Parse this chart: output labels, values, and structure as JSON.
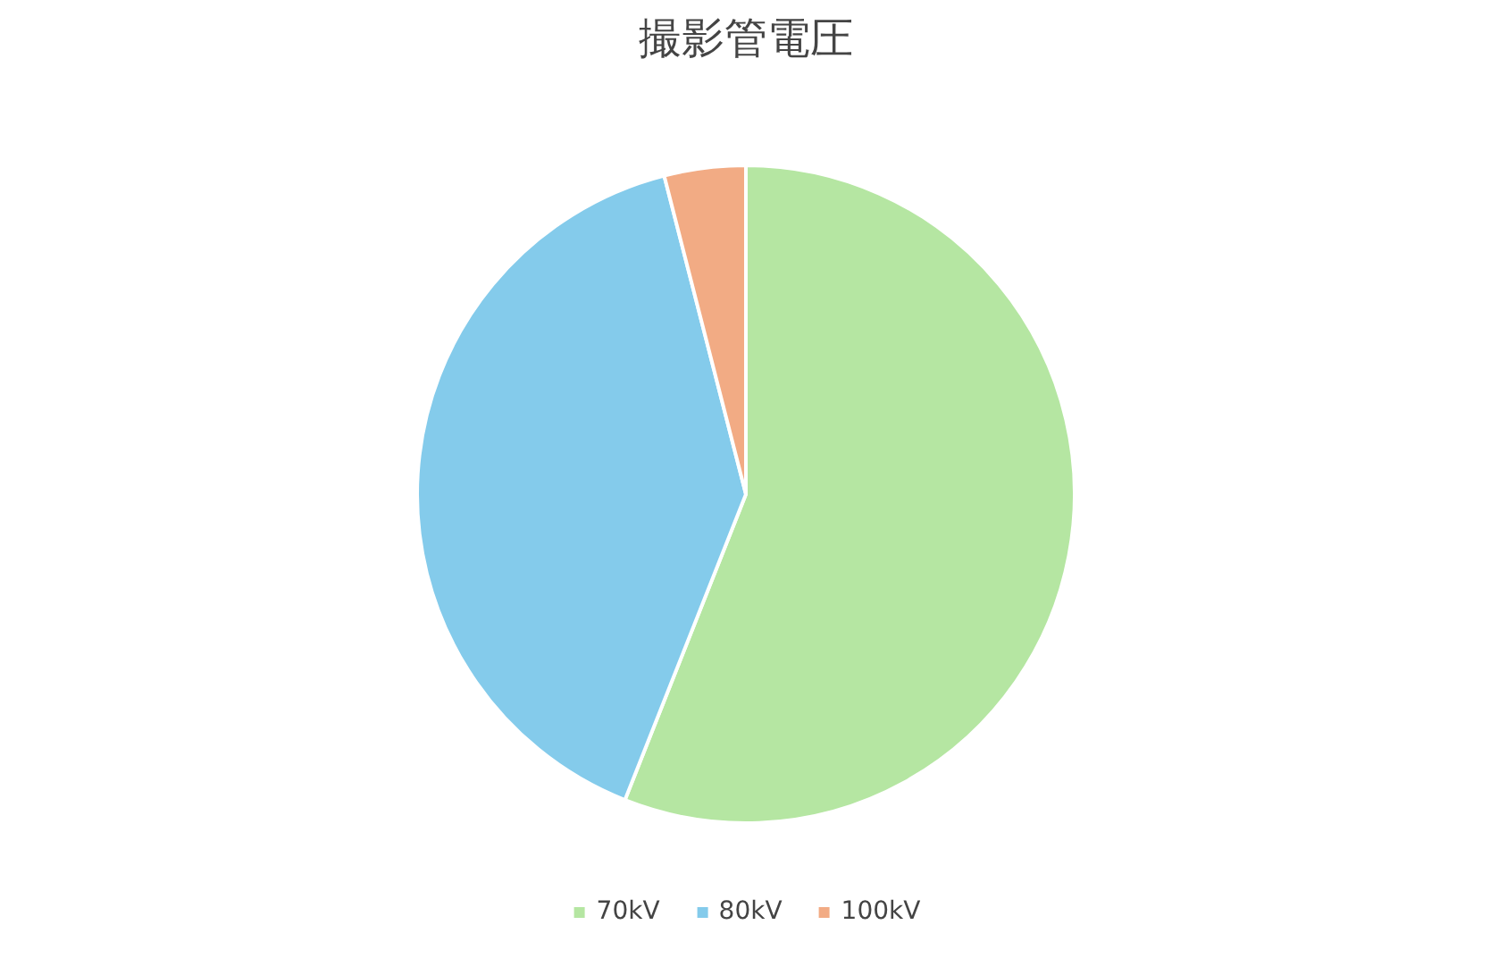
{
  "chart_data": {
    "type": "pie",
    "title": "撮影管電圧",
    "categories": [
      "70kV",
      "80kV",
      "100kV"
    ],
    "values": [
      56,
      40,
      4
    ],
    "colors": [
      "#b5e6a2",
      "#84cbeb",
      "#f2ab84"
    ],
    "legend": "bottom"
  }
}
